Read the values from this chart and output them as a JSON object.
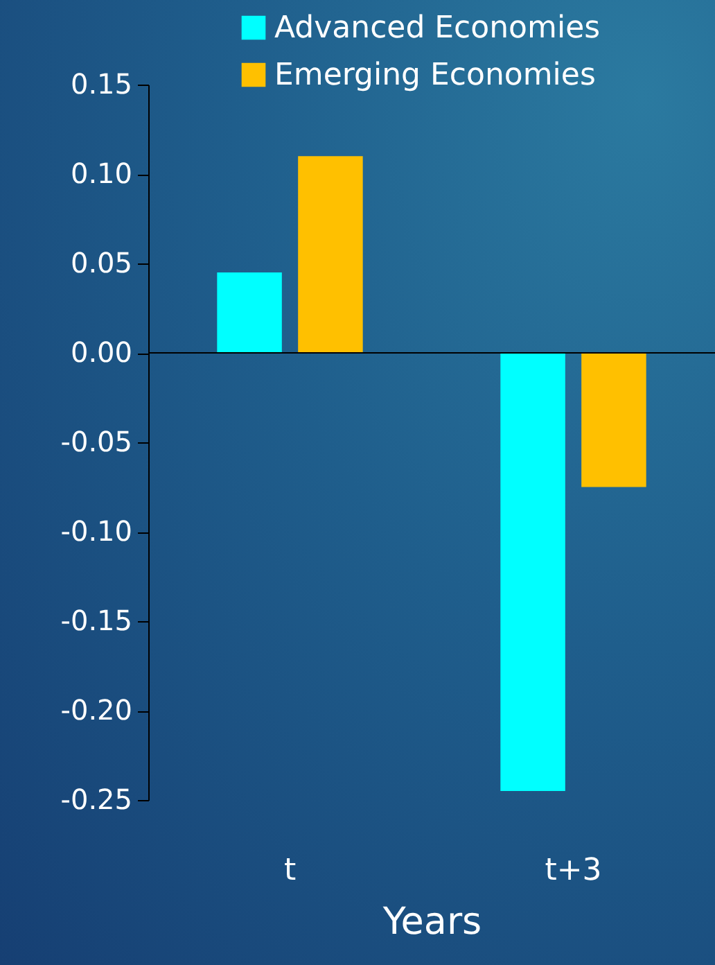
{
  "chart_data": {
    "type": "bar",
    "xlabel": "Years",
    "categories": [
      "t",
      "t+3"
    ],
    "series": [
      {
        "name": "Advanced Economies",
        "color": "#00ffff",
        "values": [
          0.045,
          -0.245
        ]
      },
      {
        "name": "Emerging Economies",
        "color": "#ffc000",
        "values": [
          0.11,
          -0.075
        ]
      }
    ],
    "ylim": [
      -0.25,
      0.15
    ],
    "yticks": [
      {
        "value": -0.25,
        "label": "-0.25"
      },
      {
        "value": -0.2,
        "label": "-0.20"
      },
      {
        "value": -0.15,
        "label": "-0.15"
      },
      {
        "value": -0.1,
        "label": "-0.10"
      },
      {
        "value": -0.05,
        "label": "-0.05"
      },
      {
        "value": 0,
        "label": "0.00"
      },
      {
        "value": 0.05,
        "label": "0.05"
      },
      {
        "value": 0.1,
        "label": "0.10"
      },
      {
        "value": 0.15,
        "label": "0.15"
      }
    ],
    "legend": "top right"
  }
}
